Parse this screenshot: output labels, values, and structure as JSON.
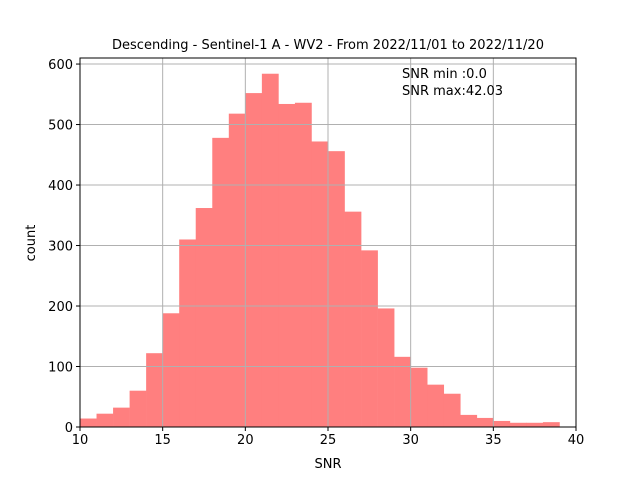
{
  "chart_data": {
    "type": "bar",
    "title": "Descending - Sentinel-1 A - WV2 - From 2022/11/01 to 2022/11/20",
    "xlabel": "SNR",
    "ylabel": "count",
    "xlim": [
      10,
      40
    ],
    "ylim": [
      0,
      610
    ],
    "xticks": [
      10,
      15,
      20,
      25,
      30,
      35,
      40
    ],
    "yticks": [
      0,
      100,
      200,
      300,
      400,
      500,
      600
    ],
    "grid": true,
    "bar_color": "#ff7f7f",
    "bin_edges": [
      10.0,
      11.0,
      12.0,
      13.0,
      14.0,
      15.0,
      16.0,
      17.0,
      18.0,
      19.0,
      20.0,
      21.0,
      22.0,
      23.0,
      24.0,
      25.0,
      26.0,
      27.0,
      28.0,
      29.0,
      30.0,
      31.0,
      32.0,
      33.0,
      34.0,
      35.0,
      36.0,
      37.0,
      38.0,
      39.0
    ],
    "values": [
      14,
      22,
      32,
      60,
      122,
      188,
      310,
      362,
      478,
      518,
      552,
      584,
      534,
      536,
      472,
      456,
      356,
      292,
      196,
      116,
      98,
      70,
      55,
      20,
      15,
      10,
      7,
      7,
      8
    ],
    "annotations": [
      {
        "text": "SNR min :0.0"
      },
      {
        "text": "SNR max:42.03"
      }
    ]
  }
}
